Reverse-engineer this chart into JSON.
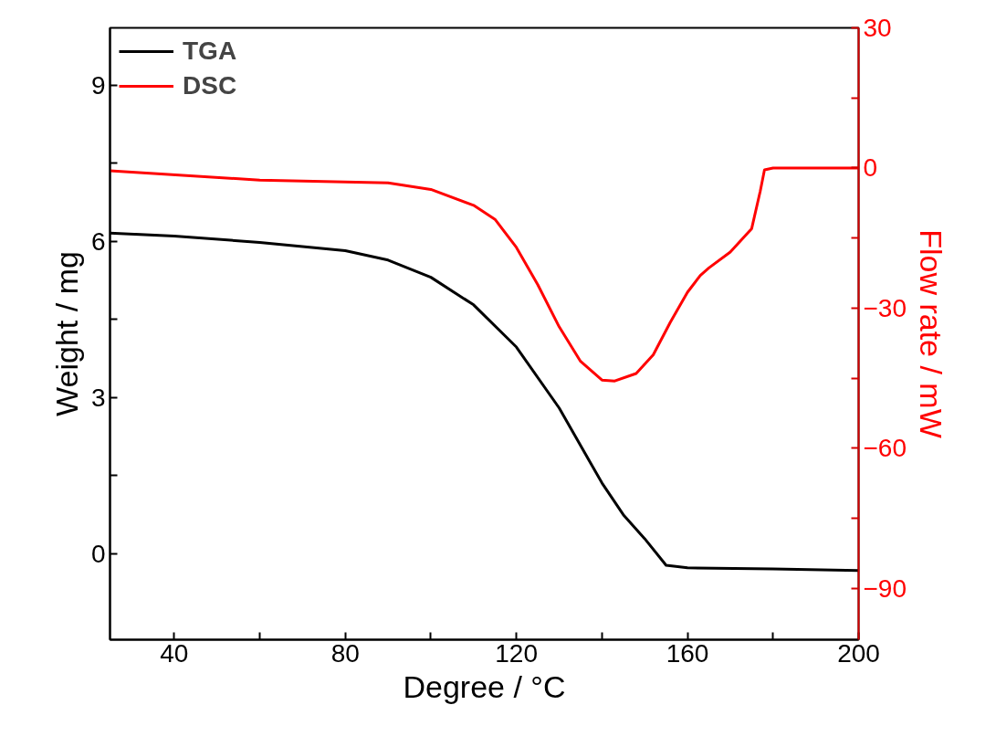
{
  "chart_data": {
    "type": "line",
    "xlabel": "Degree / °C",
    "ylabel": "Weight / mg",
    "y2label": "Flow rate / mW",
    "xlim": [
      25,
      200
    ],
    "xticks": [
      40,
      {
        "value": 60,
        "label": null
      },
      80,
      {
        "value": 100,
        "label": null
      },
      120,
      {
        "value": 140,
        "label": null
      },
      160,
      {
        "value": 180,
        "label": null
      },
      200
    ],
    "ylim": [
      -1.65,
      10.1
    ],
    "yticks": [
      0,
      {
        "value": 1.5,
        "label": null
      },
      3,
      {
        "value": 4.5,
        "label": null
      },
      6,
      {
        "value": 7.5,
        "label": null
      },
      9
    ],
    "y2lim": [
      -101,
      30
    ],
    "y2ticks": [
      -90,
      {
        "value": -75,
        "label": null
      },
      -60,
      {
        "value": -45,
        "label": null
      },
      -30,
      {
        "value": -15,
        "label": null
      },
      0,
      {
        "value": 15,
        "label": null
      },
      30
    ],
    "grid": false,
    "legend": "top left",
    "line_style": "solid",
    "series": [
      {
        "name": "TGA",
        "color": "#000000",
        "x": [
          25,
          40,
          60,
          80,
          90,
          100,
          110,
          120,
          130,
          140,
          145,
          150,
          155,
          160,
          180,
          200
        ],
        "values": [
          6.16,
          6.1,
          5.98,
          5.82,
          5.64,
          5.31,
          4.78,
          3.97,
          2.8,
          1.36,
          0.75,
          0.29,
          -0.22,
          -0.27,
          -0.29,
          -0.32
        ]
      },
      {
        "name": "DSC",
        "color": "#ff0000",
        "axis": "y2",
        "x": [
          25,
          60,
          80,
          90,
          100,
          110,
          115,
          120,
          125,
          130,
          135,
          140,
          143,
          148,
          152,
          156,
          160,
          163,
          165,
          170,
          175,
          177,
          178,
          180,
          200
        ],
        "values": [
          -0.6,
          -2.6,
          -3,
          -3.2,
          -4.6,
          -8,
          -11,
          -17,
          -25,
          -34,
          -41.4,
          -45.4,
          -45.6,
          -44,
          -40,
          -33,
          -26.6,
          -23,
          -21.4,
          -18,
          -13,
          -5,
          -0.4,
          0,
          0
        ]
      }
    ]
  }
}
